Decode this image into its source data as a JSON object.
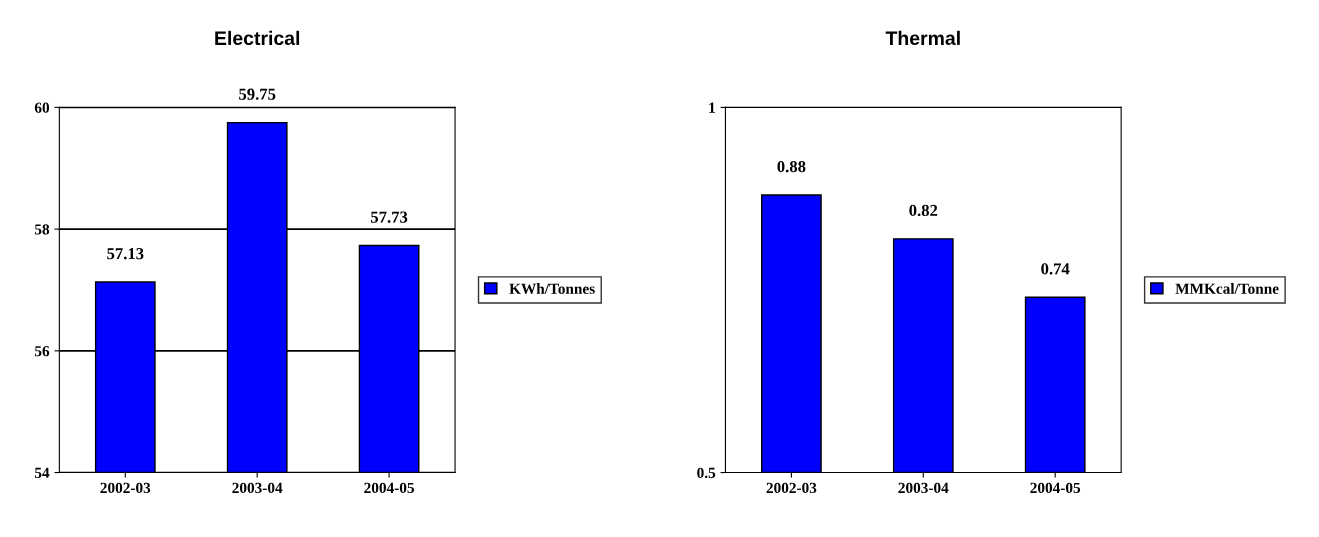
{
  "chart_data": [
    {
      "type": "bar",
      "title": "Electrical",
      "categories": [
        "2002-03",
        "2003-04",
        "2004-05"
      ],
      "series": [
        {
          "name": "KWh/Tonnes",
          "color": "#0000ff",
          "values": [
            57.13,
            59.75,
            57.73
          ]
        }
      ],
      "ylim": [
        54,
        60
      ],
      "yticks": [
        54,
        56,
        58,
        60
      ],
      "grid": "y",
      "legend": "right",
      "data_labels": true
    },
    {
      "type": "bar",
      "title": "Thermal",
      "categories": [
        "2002-03",
        "2003-04",
        "2004-05"
      ],
      "series": [
        {
          "name": "MMKcal/Tonne",
          "color": "#0000ff",
          "values": [
            0.88,
            0.82,
            0.74
          ]
        }
      ],
      "ylim": [
        0.5,
        1
      ],
      "yticks": [
        0.5,
        1
      ],
      "legend": "right",
      "data_labels": true
    }
  ]
}
